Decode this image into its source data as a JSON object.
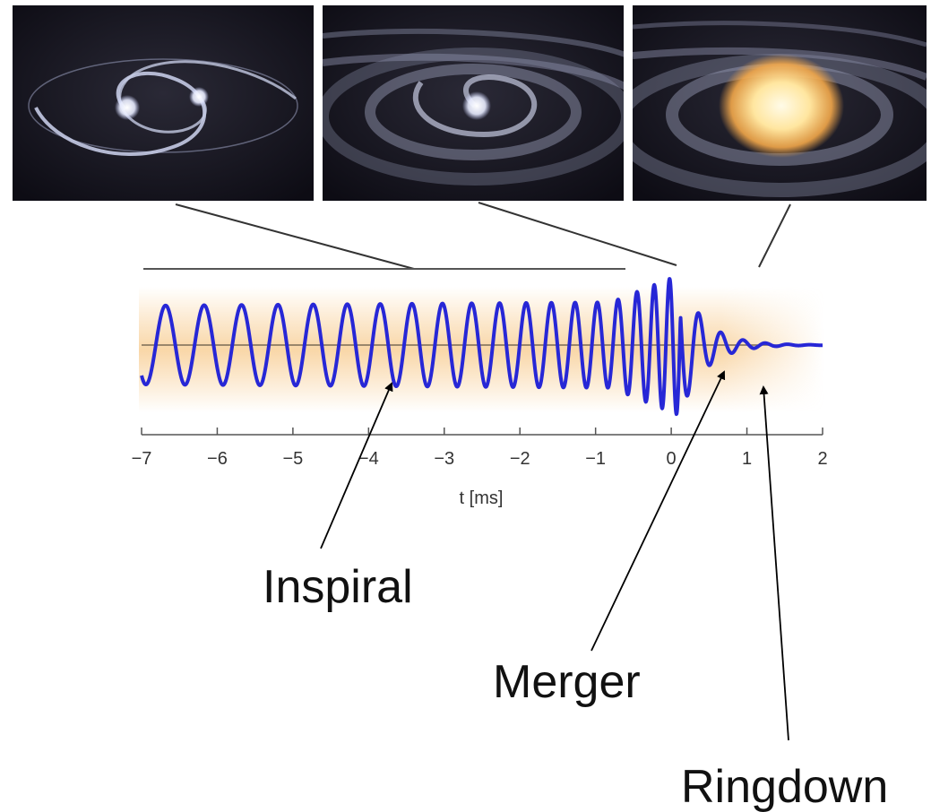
{
  "colors": {
    "waveform": "#2727d6",
    "axis": "#555555",
    "baseline": "#7a6a55",
    "band": "#f7c98a",
    "panel_bg": "#14131c",
    "orbit": "#b9bfd9",
    "flash": "#ffd27a",
    "arrow": "#000000"
  },
  "panels": [
    {
      "name": "inspiral-panel",
      "icon": "binary-orbit-image"
    },
    {
      "name": "merger-panel",
      "icon": "merging-bodies-image"
    },
    {
      "name": "ringdown-panel",
      "icon": "remnant-flash-image"
    }
  ],
  "axis": {
    "xlabel": "t [ms]",
    "xlim": [
      -7,
      2
    ],
    "ticks": [
      "−7",
      "−6",
      "−5",
      "−4",
      "−3",
      "−2",
      "−1",
      "0",
      "1",
      "2"
    ]
  },
  "phases": {
    "inspiral": "Inspiral",
    "merger": "Merger",
    "ringdown": "Ringdown"
  }
}
